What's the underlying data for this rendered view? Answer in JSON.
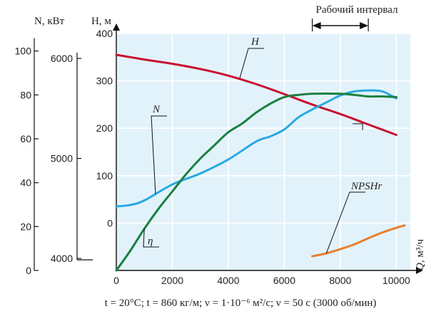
{
  "chart_data": {
    "type": "line",
    "x": {
      "label_var": "Q",
      "label_unit": ", м³/ч",
      "ticks": [
        "0",
        "2000",
        "4000",
        "6000",
        "8000",
        "10000"
      ],
      "range": [
        0,
        10500
      ]
    },
    "axes": {
      "eta": {
        "ticks": [
          "0",
          "20",
          "40",
          "60",
          "80",
          "100"
        ],
        "range": [
          0,
          108
        ]
      },
      "N": {
        "label": "N, кВт",
        "ticks": [
          "4000",
          "5000",
          "6000"
        ],
        "range": [
          3880,
          6250
        ]
      },
      "H": {
        "label": "H, м",
        "ticks": [
          "0",
          "100",
          "200",
          "300",
          "400"
        ],
        "range": [
          -100,
          400
        ]
      }
    },
    "annotation": {
      "text": "Рабочий интервал",
      "range": [
        7000,
        9000
      ]
    },
    "series": [
      {
        "name": "H",
        "axis": "H",
        "color": "#c8102e",
        "points": [
          [
            0,
            355
          ],
          [
            1000,
            345
          ],
          [
            2000,
            336
          ],
          [
            3000,
            325
          ],
          [
            4000,
            311
          ],
          [
            5000,
            293
          ],
          [
            6000,
            272
          ],
          [
            7000,
            250
          ],
          [
            8000,
            230
          ],
          [
            9000,
            208
          ],
          [
            10000,
            186
          ]
        ]
      },
      {
        "name": "N",
        "axis": "N",
        "color": "#29a9e1",
        "points": [
          [
            0,
            4520
          ],
          [
            500,
            4535
          ],
          [
            1000,
            4580
          ],
          [
            2000,
            4740
          ],
          [
            3000,
            4850
          ],
          [
            4000,
            4990
          ],
          [
            5000,
            5170
          ],
          [
            5500,
            5220
          ],
          [
            6000,
            5290
          ],
          [
            6500,
            5410
          ],
          [
            7000,
            5490
          ],
          [
            7500,
            5560
          ],
          [
            8000,
            5630
          ],
          [
            8500,
            5670
          ],
          [
            9000,
            5680
          ],
          [
            9500,
            5670
          ],
          [
            10000,
            5600
          ]
        ]
      },
      {
        "name": "η",
        "axis": "eta",
        "color": "#1a8040",
        "points": [
          [
            0,
            0
          ],
          [
            500,
            9
          ],
          [
            1000,
            19
          ],
          [
            1500,
            28
          ],
          [
            2000,
            36
          ],
          [
            2500,
            44
          ],
          [
            3000,
            51
          ],
          [
            3500,
            57
          ],
          [
            4000,
            63
          ],
          [
            4500,
            67
          ],
          [
            5000,
            72
          ],
          [
            5500,
            76
          ],
          [
            6000,
            79
          ],
          [
            6500,
            80
          ],
          [
            7000,
            80.5
          ],
          [
            8000,
            80.5
          ],
          [
            8500,
            80
          ],
          [
            9000,
            79.3
          ],
          [
            9500,
            79.3
          ],
          [
            10000,
            79
          ]
        ]
      },
      {
        "name": "NPSHr",
        "axis": "H",
        "color": "#e57f2e",
        "points": [
          [
            7000,
            -70
          ],
          [
            7500,
            -64
          ],
          [
            8000,
            -55
          ],
          [
            8500,
            -45
          ],
          [
            9000,
            -32
          ],
          [
            9500,
            -20
          ],
          [
            10000,
            -10
          ],
          [
            10300,
            -5
          ]
        ]
      }
    ],
    "caption": "t = 20°C; t = 860 кг/м; ν = 1·10⁻⁶ м²/с; ν = 50 с (3000 об/мин)"
  }
}
